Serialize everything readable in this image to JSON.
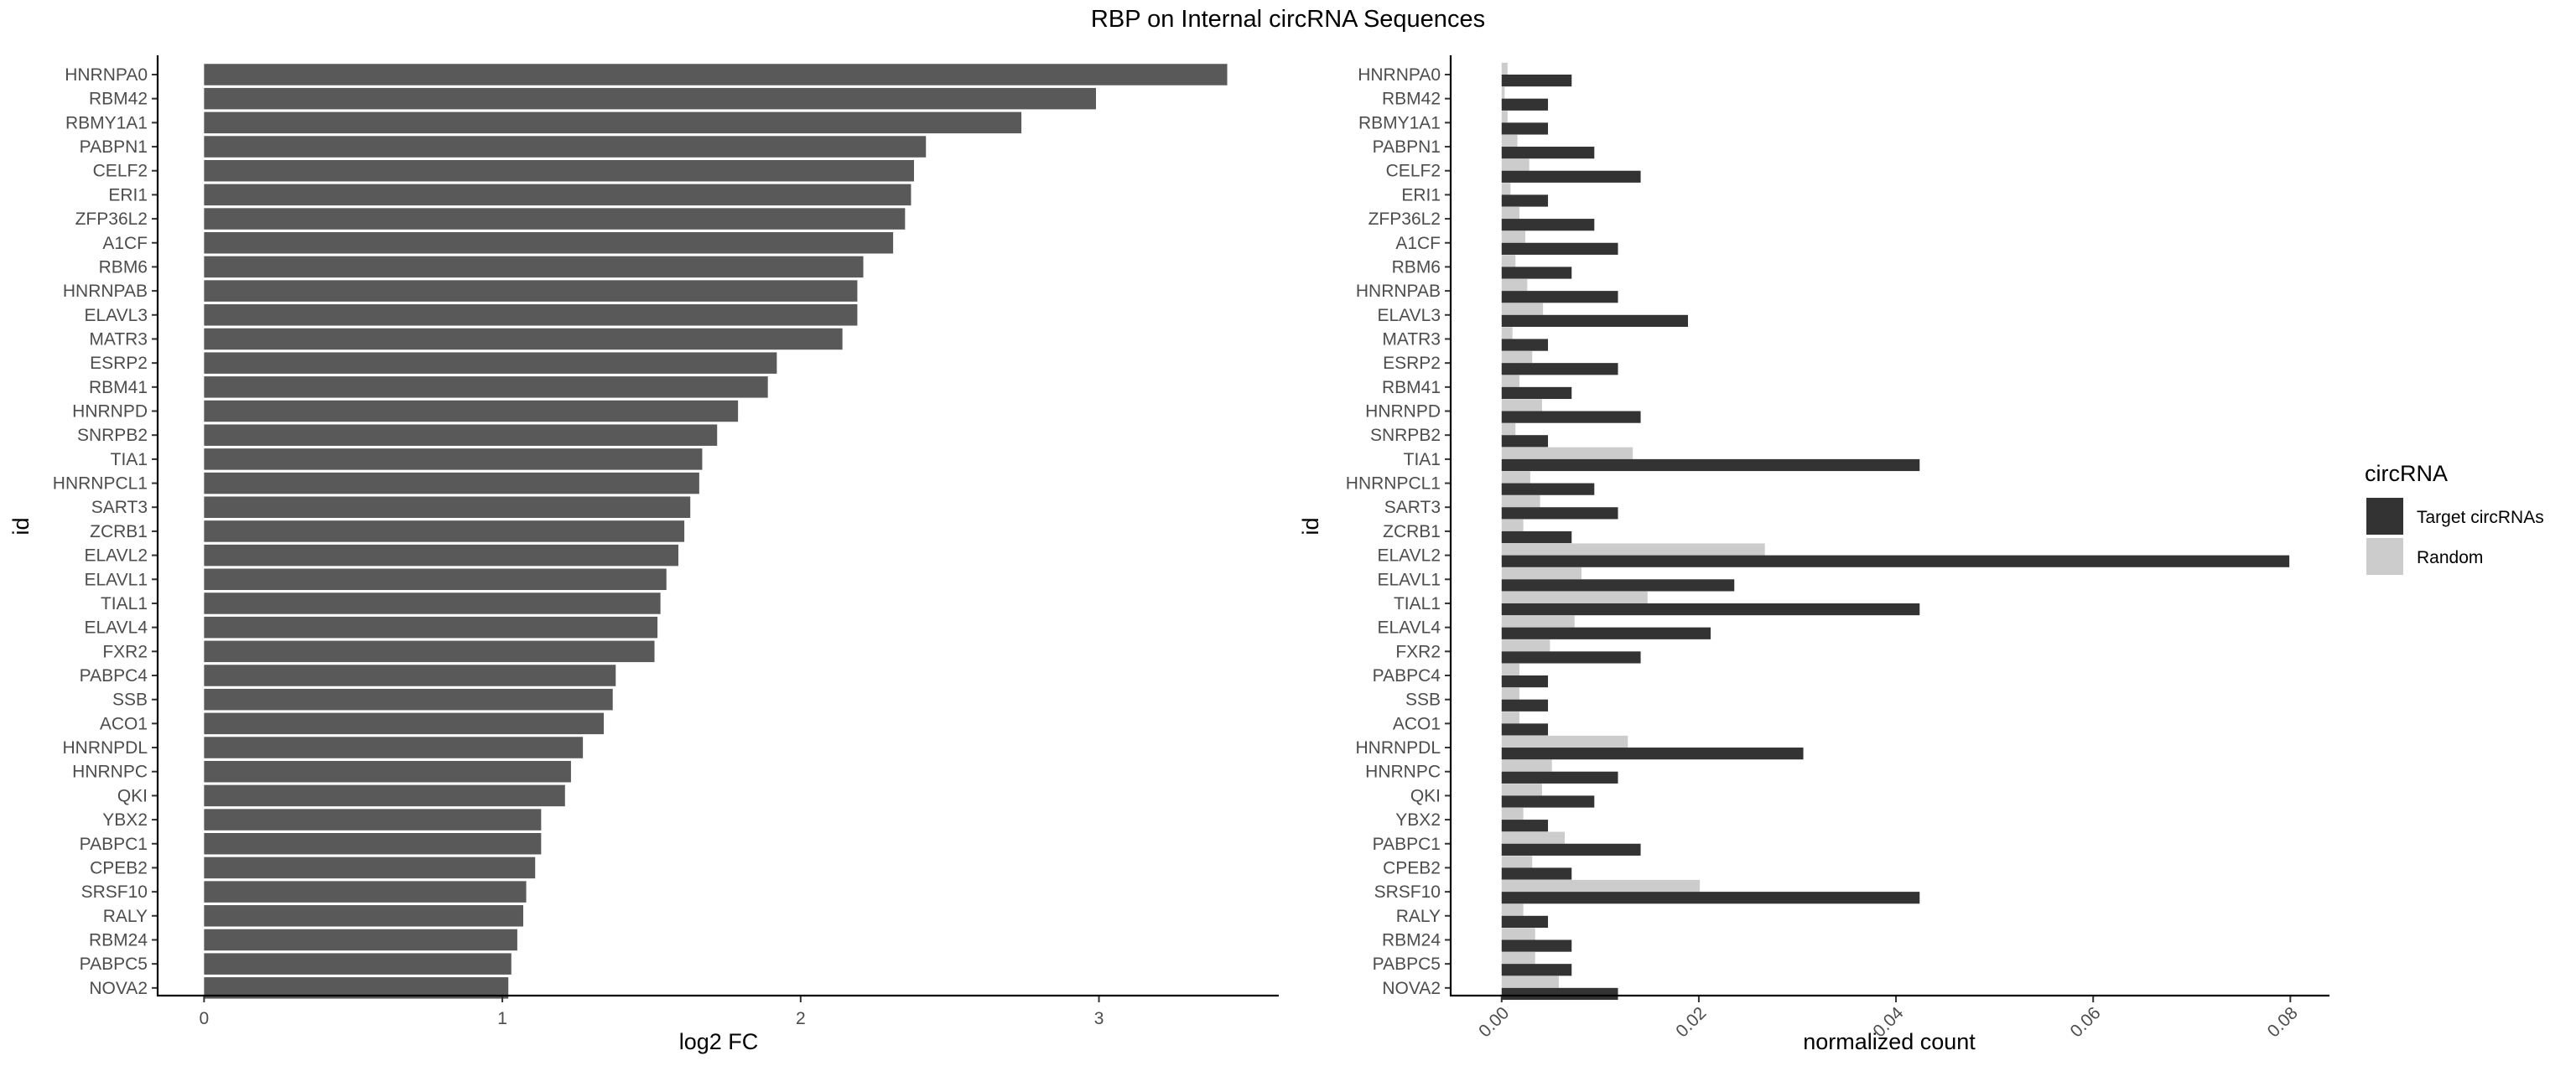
{
  "chart_data": [
    {
      "type": "bar",
      "orientation": "horizontal",
      "title": "RBP on Internal circRNA Sequences",
      "xlabel": "log2 FC",
      "ylabel": "id",
      "xlim": [
        -0.15,
        3.6
      ],
      "xticks": [
        0,
        1,
        2,
        3
      ],
      "grid": false,
      "color": "#595959",
      "categories": [
        "HNRNPA0",
        "RBM42",
        "RBMY1A1",
        "PABPN1",
        "CELF2",
        "ERI1",
        "ZFP36L2",
        "A1CF",
        "RBM6",
        "HNRNPAB",
        "ELAVL3",
        "MATR3",
        "ESRP2",
        "RBM41",
        "HNRNPD",
        "SNRPB2",
        "TIA1",
        "HNRNPCL1",
        "SART3",
        "ZCRB1",
        "ELAVL2",
        "ELAVL1",
        "TIAL1",
        "ELAVL4",
        "FXR2",
        "PABPC4",
        "SSB",
        "ACO1",
        "HNRNPDL",
        "HNRNPC",
        "QKI",
        "YBX2",
        "PABPC1",
        "CPEB2",
        "SRSF10",
        "RALY",
        "RBM24",
        "PABPC5",
        "NOVA2"
      ],
      "values": [
        3.43,
        2.99,
        2.74,
        2.42,
        2.38,
        2.37,
        2.35,
        2.31,
        2.21,
        2.19,
        2.19,
        2.14,
        1.92,
        1.89,
        1.79,
        1.72,
        1.67,
        1.66,
        1.63,
        1.61,
        1.59,
        1.55,
        1.53,
        1.52,
        1.51,
        1.38,
        1.37,
        1.34,
        1.27,
        1.23,
        1.21,
        1.13,
        1.13,
        1.11,
        1.08,
        1.07,
        1.05,
        1.03,
        1.02
      ]
    },
    {
      "type": "bar",
      "orientation": "horizontal",
      "grouped": true,
      "xlabel": "normalized count",
      "ylabel": "id",
      "xlim": [
        -0.005,
        0.0838
      ],
      "xticks": [
        "0.00",
        "0.02",
        "0.04",
        "0.06",
        "0.08"
      ],
      "grid": false,
      "legend_title": "circRNA",
      "legend_position": "right",
      "categories": [
        "HNRNPA0",
        "RBM42",
        "RBMY1A1",
        "PABPN1",
        "CELF2",
        "ERI1",
        "ZFP36L2",
        "A1CF",
        "RBM6",
        "HNRNPAB",
        "ELAVL3",
        "MATR3",
        "ESRP2",
        "RBM41",
        "HNRNPD",
        "SNRPB2",
        "TIA1",
        "HNRNPCL1",
        "SART3",
        "ZCRB1",
        "ELAVL2",
        "ELAVL1",
        "TIAL1",
        "ELAVL4",
        "FXR2",
        "PABPC4",
        "SSB",
        "ACO1",
        "HNRNPDL",
        "HNRNPC",
        "QKI",
        "YBX2",
        "PABPC1",
        "CPEB2",
        "SRSF10",
        "RALY",
        "RBM24",
        "PABPC5",
        "NOVA2"
      ],
      "series": [
        {
          "name": "Target circRNAs",
          "color": "#333333",
          "values": [
            0.0071,
            0.0047,
            0.0047,
            0.0094,
            0.0141,
            0.0047,
            0.0094,
            0.0118,
            0.0071,
            0.0118,
            0.0189,
            0.0047,
            0.0118,
            0.0071,
            0.0141,
            0.0047,
            0.0424,
            0.0094,
            0.0118,
            0.0071,
            0.0799,
            0.0236,
            0.0424,
            0.0212,
            0.0141,
            0.0047,
            0.0047,
            0.0047,
            0.0306,
            0.0118,
            0.0094,
            0.0047,
            0.0141,
            0.0071,
            0.0424,
            0.0047,
            0.0071,
            0.0071,
            0.0118
          ]
        },
        {
          "name": "Random",
          "color": "#cccccc",
          "values": [
            0.0006,
            0.0003,
            0.0006,
            0.0016,
            0.0028,
            0.0009,
            0.0018,
            0.0024,
            0.0014,
            0.0026,
            0.0042,
            0.0011,
            0.0031,
            0.0018,
            0.0041,
            0.0014,
            0.0133,
            0.0029,
            0.0039,
            0.0022,
            0.0267,
            0.0081,
            0.0148,
            0.0074,
            0.0049,
            0.0018,
            0.0018,
            0.0018,
            0.0128,
            0.0051,
            0.0041,
            0.0022,
            0.0064,
            0.0031,
            0.0201,
            0.0022,
            0.0034,
            0.0034,
            0.0058
          ]
        }
      ]
    }
  ]
}
